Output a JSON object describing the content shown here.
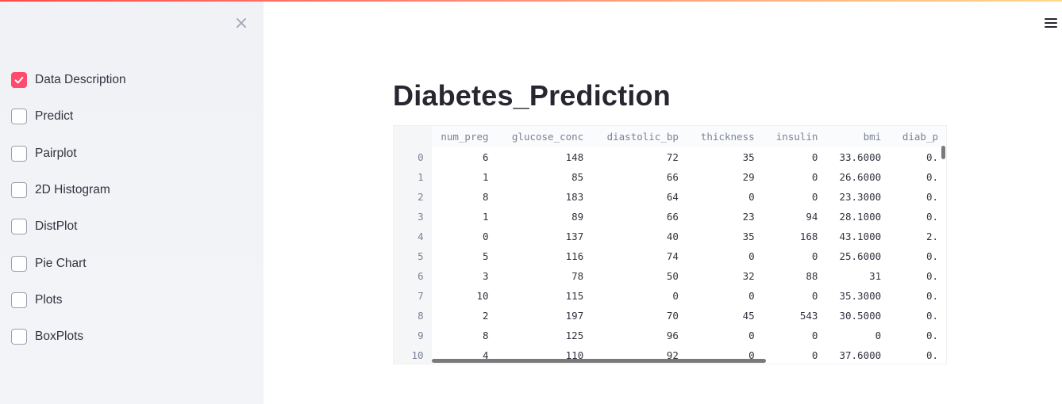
{
  "sidebar": {
    "close_icon": "×",
    "checkboxes": [
      {
        "label": "Data Description",
        "checked": true
      },
      {
        "label": "Predict",
        "checked": false
      },
      {
        "label": "Pairplot",
        "checked": false
      },
      {
        "label": "2D Histogram",
        "checked": false
      },
      {
        "label": "DistPlot",
        "checked": false
      },
      {
        "label": "Pie Chart",
        "checked": false
      },
      {
        "label": "Plots",
        "checked": false
      },
      {
        "label": "BoxPlots",
        "checked": false
      }
    ]
  },
  "main": {
    "title": "Diabetes_Prediction",
    "menu_icon": "hamburger-icon"
  },
  "table": {
    "columns": [
      "",
      "num_preg",
      "glucose_conc",
      "diastolic_bp",
      "thickness",
      "insulin",
      "bmi",
      "diab_p"
    ],
    "rows": [
      [
        "0",
        "6",
        "148",
        "72",
        "35",
        "0",
        "33.6000",
        "0."
      ],
      [
        "1",
        "1",
        "85",
        "66",
        "29",
        "0",
        "26.6000",
        "0."
      ],
      [
        "2",
        "8",
        "183",
        "64",
        "0",
        "0",
        "23.3000",
        "0."
      ],
      [
        "3",
        "1",
        "89",
        "66",
        "23",
        "94",
        "28.1000",
        "0."
      ],
      [
        "4",
        "0",
        "137",
        "40",
        "35",
        "168",
        "43.1000",
        "2."
      ],
      [
        "5",
        "5",
        "116",
        "74",
        "0",
        "0",
        "25.6000",
        "0."
      ],
      [
        "6",
        "3",
        "78",
        "50",
        "32",
        "88",
        "31",
        "0."
      ],
      [
        "7",
        "10",
        "115",
        "0",
        "0",
        "0",
        "35.3000",
        "0."
      ],
      [
        "8",
        "2",
        "197",
        "70",
        "45",
        "543",
        "30.5000",
        "0."
      ],
      [
        "9",
        "8",
        "125",
        "96",
        "0",
        "0",
        "0",
        "0."
      ],
      [
        "10",
        "4",
        "110",
        "92",
        "0",
        "0",
        "37.6000",
        "0."
      ]
    ]
  },
  "colors": {
    "accent": "#ff4b6e",
    "sidebar_bg": "#f0f2f6"
  }
}
